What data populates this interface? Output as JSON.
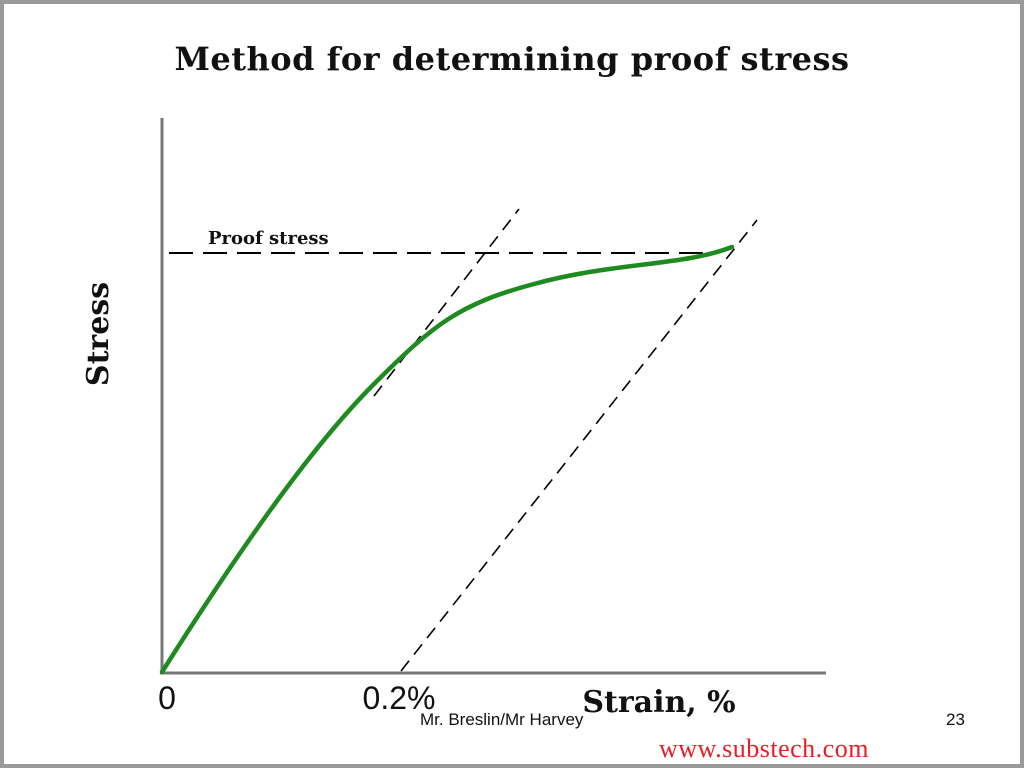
{
  "title": "Method for determining proof stress",
  "diagram": {
    "y_axis_label": "Stress",
    "x_axis_label": "Strain, %",
    "origin_label": "0",
    "offset_label": "0.2%",
    "proof_stress_label": "Proof stress",
    "curve_color": "#1f8a1f",
    "line_color": "#000000"
  },
  "footer": {
    "author": "Mr. Breslin/Mr Harvey",
    "page_number": "23"
  },
  "watermark": "www.substech.com"
}
